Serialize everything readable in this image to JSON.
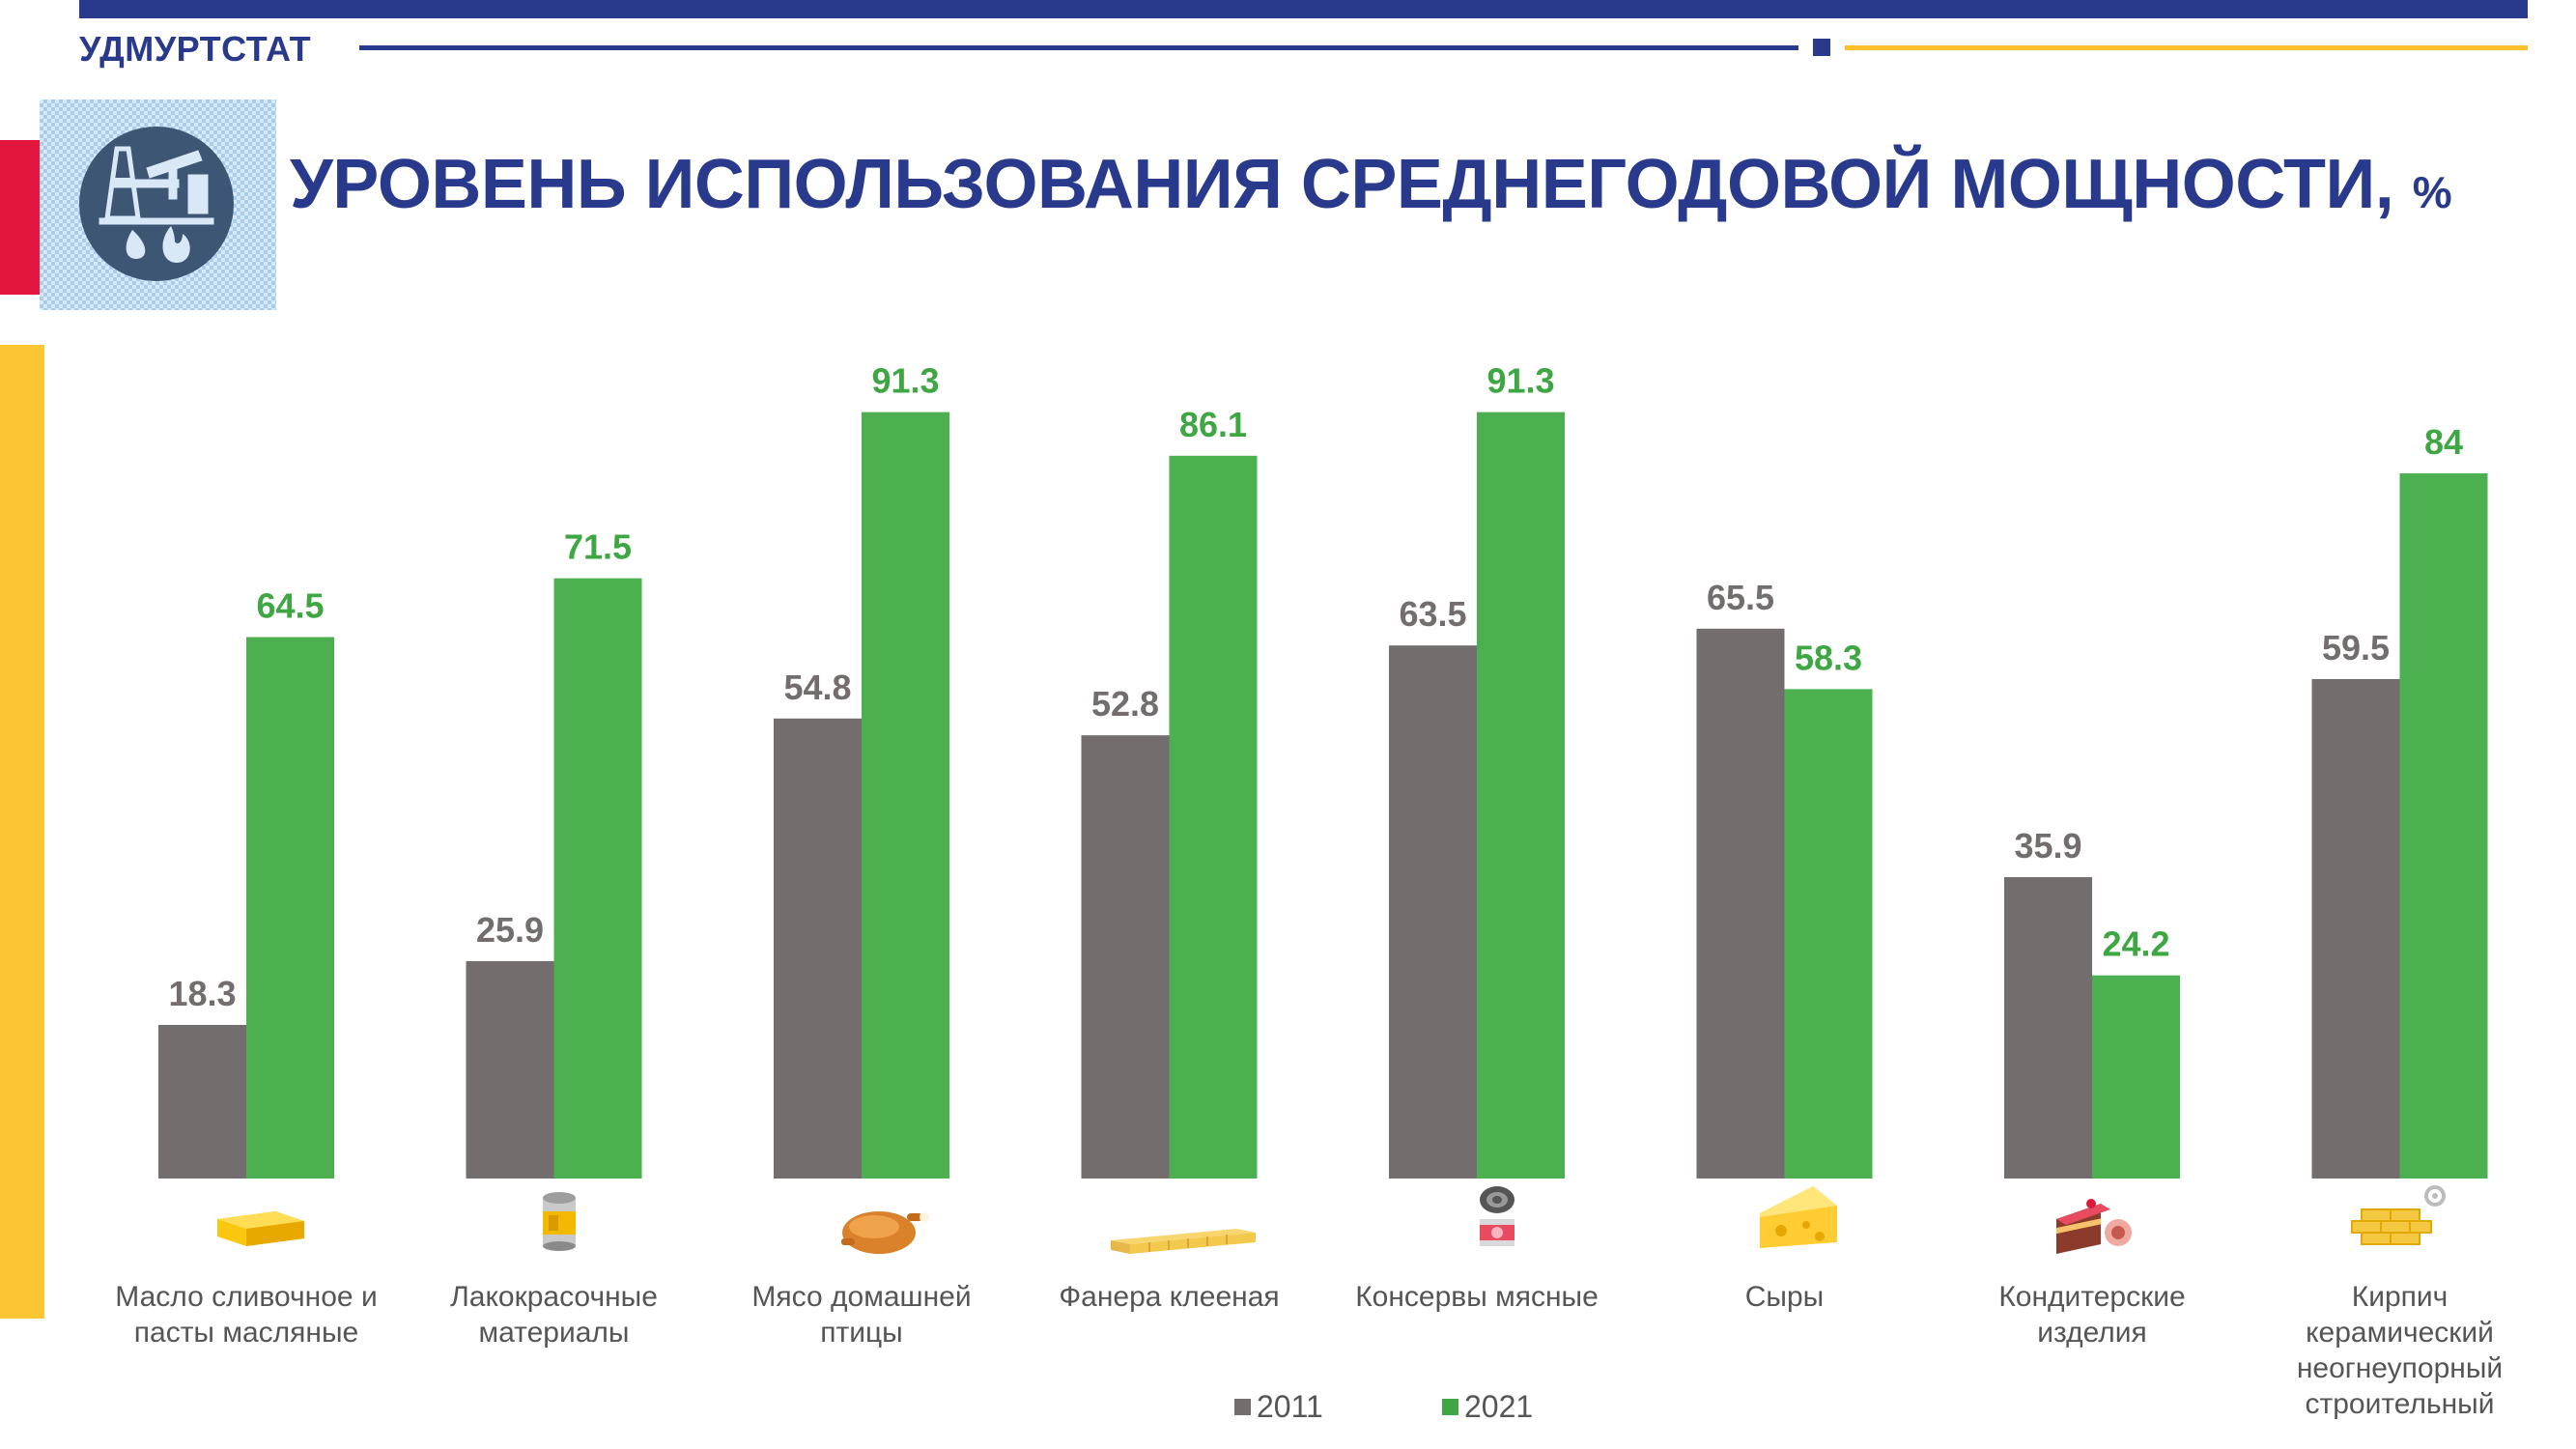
{
  "header": {
    "brand": "УДМУРТСТАТ",
    "title": "УРОВЕНЬ ИСПОЛЬЗОВАНИЯ СРЕДНЕГОДОВОЙ МОЩНОСТИ,",
    "title_unit": "%"
  },
  "colors": {
    "brand_blue": "#293a8c",
    "accent_yellow": "#fbc533",
    "accent_red": "#e3173e",
    "series_2011": "#736e6d",
    "series_2021": "#4caf50",
    "label_2021": "#3ea744"
  },
  "icons": [
    "oil-gas-industry-icon",
    "butter-icon",
    "paint-can-icon",
    "roast-chicken-icon",
    "plywood-icon",
    "canned-meat-icon",
    "cheese-icon",
    "cake-icon",
    "brick-icon"
  ],
  "chart_data": {
    "type": "bar",
    "categories": [
      [
        "Масло сливочное и",
        "пасты масляные"
      ],
      [
        "Лакокрасочные",
        "материалы"
      ],
      [
        "Мясо домашней",
        "птицы"
      ],
      [
        "Фанера клееная"
      ],
      [
        "Консервы мясные"
      ],
      [
        "Сыры"
      ],
      [
        "Кондитерские",
        "изделия"
      ],
      [
        "Кирпич",
        "керамический",
        "неогнеупорный",
        "строительный"
      ]
    ],
    "series": [
      {
        "name": "2011",
        "values": [
          18.3,
          25.9,
          54.8,
          52.8,
          63.5,
          65.5,
          35.9,
          59.5
        ],
        "labels": [
          "18.3",
          "25.9",
          "54.8",
          "52.8",
          "63.5",
          "65.5",
          "35.9",
          "59.5"
        ]
      },
      {
        "name": "2021",
        "values": [
          64.5,
          71.5,
          91.3,
          86.1,
          91.3,
          58.3,
          24.2,
          84
        ],
        "labels": [
          "64.5",
          "71.5",
          "91.3",
          "86.1",
          "91.3",
          "58.3",
          "24.2",
          "84"
        ]
      }
    ],
    "ylim": [
      0,
      100
    ],
    "grid": false,
    "legend_position": "bottom-center"
  }
}
